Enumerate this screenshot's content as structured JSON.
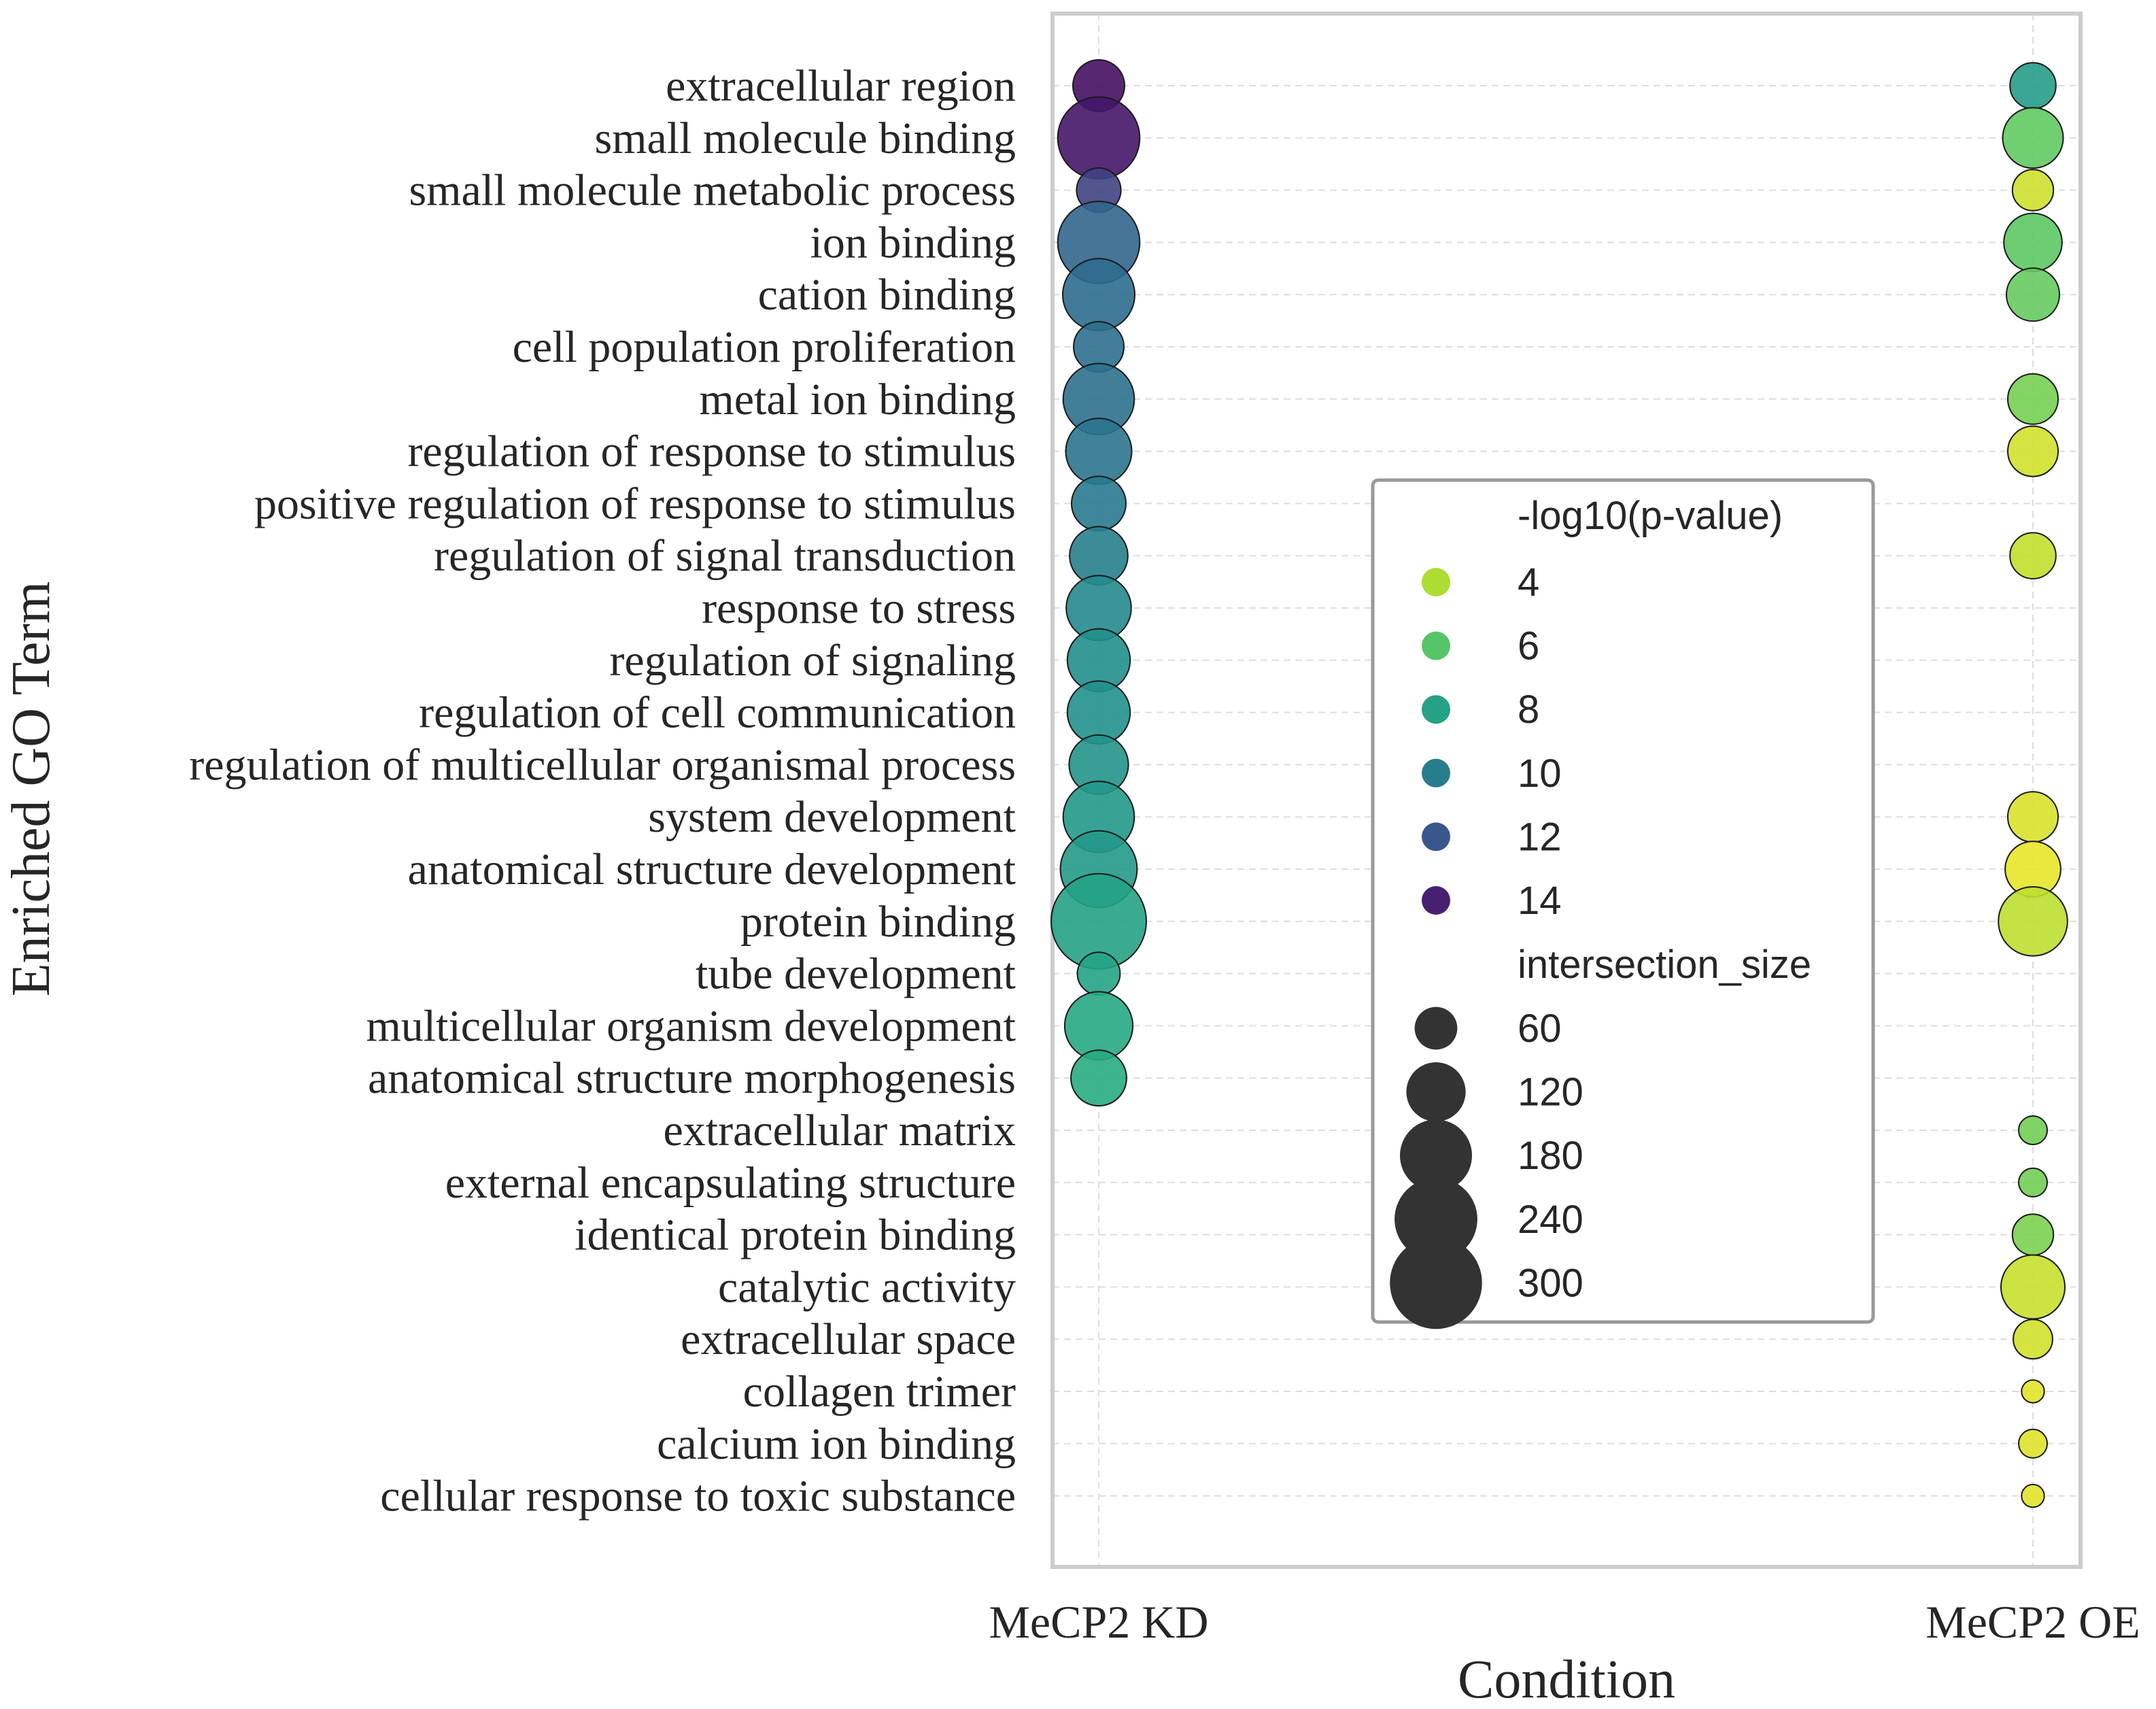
{
  "chart_data": {
    "type": "scatter",
    "xlabel": "Condition",
    "ylabel": "Enriched GO Term",
    "conditions": [
      "MeCP2 KD",
      "MeCP2 OE"
    ],
    "terms": [
      "extracellular region",
      "small molecule binding",
      "small molecule metabolic process",
      "ion binding",
      "cation binding",
      "cell population proliferation",
      "metal ion binding",
      "regulation of response to stimulus",
      "positive regulation of response to stimulus",
      "regulation of signal transduction",
      "response to stress",
      "regulation of signaling",
      "regulation of cell communication",
      "regulation of multicellular organismal process",
      "system development",
      "anatomical structure development",
      "protein binding",
      "tube development",
      "multicellular organism development",
      "anatomical structure morphogenesis",
      "extracellular matrix",
      "external encapsulating structure",
      "identical protein binding",
      "catalytic activity",
      "extracellular space",
      "collagen trimer",
      "calcium ion binding",
      "cellular response to toxic substance"
    ],
    "points": [
      {
        "term": "extracellular region",
        "condition": "MeCP2 KD",
        "neg_log10_p": 14.8,
        "intersection_size": 90
      },
      {
        "term": "small molecule binding",
        "condition": "MeCP2 KD",
        "neg_log10_p": 14.5,
        "intersection_size": 235
      },
      {
        "term": "small molecule metabolic process",
        "condition": "MeCP2 KD",
        "neg_log10_p": 12.8,
        "intersection_size": 65
      },
      {
        "term": "ion binding",
        "condition": "MeCP2 KD",
        "neg_log10_p": 11.2,
        "intersection_size": 235
      },
      {
        "term": "cation binding",
        "condition": "MeCP2 KD",
        "neg_log10_p": 10.8,
        "intersection_size": 180
      },
      {
        "term": "cell population proliferation",
        "condition": "MeCP2 KD",
        "neg_log10_p": 10.7,
        "intersection_size": 85
      },
      {
        "term": "metal ion binding",
        "condition": "MeCP2 KD",
        "neg_log10_p": 10.6,
        "intersection_size": 175
      },
      {
        "term": "regulation of response to stimulus",
        "condition": "MeCP2 KD",
        "neg_log10_p": 10.4,
        "intersection_size": 150
      },
      {
        "term": "positive regulation of response to stimulus",
        "condition": "MeCP2 KD",
        "neg_log10_p": 10.2,
        "intersection_size": 100
      },
      {
        "term": "regulation of signal transduction",
        "condition": "MeCP2 KD",
        "neg_log10_p": 9.9,
        "intersection_size": 115
      },
      {
        "term": "response to stress",
        "condition": "MeCP2 KD",
        "neg_log10_p": 9.4,
        "intersection_size": 145
      },
      {
        "term": "regulation of signaling",
        "condition": "MeCP2 KD",
        "neg_log10_p": 9.1,
        "intersection_size": 135
      },
      {
        "term": "regulation of cell communication",
        "condition": "MeCP2 KD",
        "neg_log10_p": 9.0,
        "intersection_size": 135
      },
      {
        "term": "regulation of multicellular organismal process",
        "condition": "MeCP2 KD",
        "neg_log10_p": 8.8,
        "intersection_size": 120
      },
      {
        "term": "system development",
        "condition": "MeCP2 KD",
        "neg_log10_p": 8.6,
        "intersection_size": 175
      },
      {
        "term": "anatomical structure development",
        "condition": "MeCP2 KD",
        "neg_log10_p": 8.5,
        "intersection_size": 205
      },
      {
        "term": "protein binding",
        "condition": "MeCP2 KD",
        "neg_log10_p": 8.0,
        "intersection_size": 320
      },
      {
        "term": "tube development",
        "condition": "MeCP2 KD",
        "neg_log10_p": 7.9,
        "intersection_size": 60
      },
      {
        "term": "multicellular organism development",
        "condition": "MeCP2 KD",
        "neg_log10_p": 7.6,
        "intersection_size": 160
      },
      {
        "term": "anatomical structure morphogenesis",
        "condition": "MeCP2 KD",
        "neg_log10_p": 7.4,
        "intersection_size": 105
      },
      {
        "term": "extracellular region",
        "condition": "MeCP2 OE",
        "neg_log10_p": 8.3,
        "intersection_size": 70
      },
      {
        "term": "small molecule binding",
        "condition": "MeCP2 OE",
        "neg_log10_p": 5.7,
        "intersection_size": 125
      },
      {
        "term": "small molecule metabolic process",
        "condition": "MeCP2 OE",
        "neg_log10_p": 3.4,
        "intersection_size": 55
      },
      {
        "term": "ion binding",
        "condition": "MeCP2 OE",
        "neg_log10_p": 5.8,
        "intersection_size": 115
      },
      {
        "term": "cation binding",
        "condition": "MeCP2 OE",
        "neg_log10_p": 5.6,
        "intersection_size": 95
      },
      {
        "term": "metal ion binding",
        "condition": "MeCP2 OE",
        "neg_log10_p": 5.2,
        "intersection_size": 85
      },
      {
        "term": "regulation of response to stimulus",
        "condition": "MeCP2 OE",
        "neg_log10_p": 3.3,
        "intersection_size": 85
      },
      {
        "term": "regulation of signal transduction",
        "condition": "MeCP2 OE",
        "neg_log10_p": 3.6,
        "intersection_size": 70
      },
      {
        "term": "system development",
        "condition": "MeCP2 OE",
        "neg_log10_p": 3.2,
        "intersection_size": 85
      },
      {
        "term": "anatomical structure development",
        "condition": "MeCP2 OE",
        "neg_log10_p": 2.9,
        "intersection_size": 105
      },
      {
        "term": "protein binding",
        "condition": "MeCP2 OE",
        "neg_log10_p": 3.7,
        "intersection_size": 165
      },
      {
        "term": "extracellular matrix",
        "condition": "MeCP2 OE",
        "neg_log10_p": 5.3,
        "intersection_size": 25
      },
      {
        "term": "external encapsulating structure",
        "condition": "MeCP2 OE",
        "neg_log10_p": 5.3,
        "intersection_size": 25
      },
      {
        "term": "identical protein binding",
        "condition": "MeCP2 OE",
        "neg_log10_p": 5.1,
        "intersection_size": 55
      },
      {
        "term": "catalytic activity",
        "condition": "MeCP2 OE",
        "neg_log10_p": 3.5,
        "intersection_size": 140
      },
      {
        "term": "extracellular space",
        "condition": "MeCP2 OE",
        "neg_log10_p": 3.3,
        "intersection_size": 50
      },
      {
        "term": "collagen trimer",
        "condition": "MeCP2 OE",
        "neg_log10_p": 3.0,
        "intersection_size": 15
      },
      {
        "term": "calcium ion binding",
        "condition": "MeCP2 OE",
        "neg_log10_p": 3.1,
        "intersection_size": 25
      },
      {
        "term": "cellular response to toxic substance",
        "condition": "MeCP2 OE",
        "neg_log10_p": 3.0,
        "intersection_size": 15
      }
    ],
    "color_scale": {
      "name": "viridis_r",
      "min": 2.5,
      "max": 15.5
    },
    "legend": {
      "placement": "center-right",
      "color_title": "-log10(p-value)",
      "color_entries": [
        4,
        6,
        8,
        10,
        12,
        14
      ],
      "size_title": "intersection_size",
      "size_entries": [
        60,
        120,
        180,
        240,
        300
      ]
    },
    "grid": true
  }
}
